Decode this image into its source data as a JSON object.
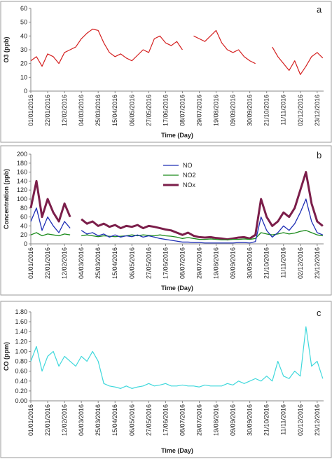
{
  "chart_data": [
    {
      "type": "line",
      "panel_label": "a",
      "xlabel": "Time (Day)",
      "ylabel": "O3 (ppb)",
      "x": [
        "01/01/2016",
        "08/01/2016",
        "15/01/2016",
        "22/01/2016",
        "29/01/2016",
        "05/02/2016",
        "12/02/2016",
        "19/02/2016",
        "26/02/2016",
        "04/03/2016",
        "11/03/2016",
        "18/03/2016",
        "25/03/2016",
        "01/04/2016",
        "08/04/2016",
        "15/04/2016",
        "22/04/2016",
        "29/04/2016",
        "06/05/2016",
        "13/05/2016",
        "20/05/2016",
        "27/05/2016",
        "03/06/2016",
        "10/06/2016",
        "17/06/2016",
        "24/06/2016",
        "01/07/2016",
        "08/07/2016",
        "15/07/2016",
        "22/07/2016",
        "29/07/2016",
        "05/08/2016",
        "12/08/2016",
        "19/08/2016",
        "26/08/2016",
        "02/09/2016",
        "09/09/2016",
        "16/09/2016",
        "23/09/2016",
        "30/09/2016",
        "07/10/2016",
        "14/10/2016",
        "21/10/2016",
        "28/10/2016",
        "04/11/2016",
        "11/11/2016",
        "18/11/2016",
        "25/11/2016",
        "02/12/2016",
        "09/12/2016",
        "16/12/2016",
        "23/12/2016",
        "30/12/2016"
      ],
      "xticks": [
        "01/01/2016",
        "22/01/2016",
        "12/02/2016",
        "04/03/2016",
        "25/03/2016",
        "15/04/2016",
        "06/05/2016",
        "27/05/2016",
        "17/06/2016",
        "08/07/2016",
        "29/07/2016",
        "19/08/2016",
        "09/09/2016",
        "30/09/2016",
        "21/10/2016",
        "11/11/2016",
        "02/12/2016",
        "23/12/2016"
      ],
      "ylim": [
        0,
        60
      ],
      "yticks": [
        0,
        10,
        20,
        30,
        40,
        50,
        60
      ],
      "series": [
        {
          "name": "O3",
          "color": "#d42020",
          "values": [
            22,
            25,
            18,
            27,
            25,
            20,
            28,
            30,
            32,
            38,
            42,
            45,
            44,
            35,
            28,
            25,
            27,
            24,
            22,
            26,
            30,
            28,
            38,
            40,
            35,
            33,
            36,
            30,
            null,
            40,
            38,
            36,
            40,
            44,
            35,
            30,
            28,
            30,
            25,
            22,
            20,
            null,
            null,
            32,
            25,
            20,
            15,
            22,
            12,
            18,
            25,
            28,
            24
          ]
        }
      ]
    },
    {
      "type": "line",
      "panel_label": "b",
      "xlabel": "Time (Day)",
      "ylabel": "Concentration (ppb)",
      "legend": "top-center",
      "x": [
        "01/01/2016",
        "08/01/2016",
        "15/01/2016",
        "22/01/2016",
        "29/01/2016",
        "05/02/2016",
        "12/02/2016",
        "19/02/2016",
        "26/02/2016",
        "04/03/2016",
        "11/03/2016",
        "18/03/2016",
        "25/03/2016",
        "01/04/2016",
        "08/04/2016",
        "15/04/2016",
        "22/04/2016",
        "29/04/2016",
        "06/05/2016",
        "13/05/2016",
        "20/05/2016",
        "27/05/2016",
        "03/06/2016",
        "10/06/2016",
        "17/06/2016",
        "24/06/2016",
        "01/07/2016",
        "08/07/2016",
        "15/07/2016",
        "22/07/2016",
        "29/07/2016",
        "05/08/2016",
        "12/08/2016",
        "19/08/2016",
        "26/08/2016",
        "02/09/2016",
        "09/09/2016",
        "16/09/2016",
        "23/09/2016",
        "30/09/2016",
        "07/10/2016",
        "14/10/2016",
        "21/10/2016",
        "28/10/2016",
        "04/11/2016",
        "11/11/2016",
        "18/11/2016",
        "25/11/2016",
        "02/12/2016",
        "09/12/2016",
        "16/12/2016",
        "23/12/2016",
        "30/12/2016"
      ],
      "xticks": [
        "01/01/2016",
        "22/01/2016",
        "12/02/2016",
        "04/03/2016",
        "25/03/2016",
        "15/04/2016",
        "06/05/2016",
        "27/05/2016",
        "17/06/2016",
        "08/07/2016",
        "29/07/2016",
        "19/08/2016",
        "09/09/2016",
        "30/09/2016",
        "21/10/2016",
        "11/11/2016",
        "02/12/2016",
        "23/12/2016"
      ],
      "ylim": [
        0,
        200
      ],
      "yticks": [
        0,
        20,
        40,
        60,
        80,
        100,
        120,
        140,
        160,
        180,
        200
      ],
      "series": [
        {
          "name": "NOx",
          "color": "#7b1e4a",
          "width": 3,
          "values": [
            80,
            140,
            60,
            100,
            70,
            50,
            90,
            60,
            null,
            55,
            45,
            50,
            40,
            45,
            38,
            42,
            35,
            40,
            38,
            42,
            35,
            40,
            38,
            35,
            32,
            30,
            25,
            20,
            25,
            18,
            15,
            14,
            15,
            13,
            12,
            10,
            12,
            14,
            15,
            12,
            20,
            100,
            60,
            40,
            50,
            70,
            60,
            80,
            120,
            160,
            90,
            50,
            40
          ]
        },
        {
          "name": "NO2",
          "color": "#1a8a1a",
          "width": 1.3,
          "values": [
            20,
            25,
            18,
            22,
            20,
            18,
            22,
            20,
            null,
            18,
            20,
            18,
            16,
            18,
            17,
            16,
            17,
            18,
            20,
            18,
            20,
            19,
            18,
            20,
            18,
            17,
            15,
            12,
            14,
            12,
            10,
            10,
            11,
            10,
            9,
            9,
            10,
            10,
            11,
            10,
            12,
            25,
            22,
            20,
            22,
            25,
            22,
            24,
            28,
            30,
            25,
            20,
            18
          ]
        },
        {
          "name": "NO",
          "color": "#1f2fb5",
          "width": 1.3,
          "values": [
            50,
            80,
            30,
            60,
            40,
            25,
            50,
            35,
            null,
            30,
            22,
            25,
            18,
            22,
            15,
            20,
            15,
            18,
            16,
            20,
            15,
            18,
            15,
            12,
            10,
            8,
            6,
            4,
            4,
            3,
            3,
            2,
            2,
            2,
            2,
            2,
            2,
            3,
            3,
            2,
            5,
            60,
            30,
            15,
            25,
            40,
            30,
            45,
            70,
            100,
            50,
            25,
            20
          ]
        }
      ]
    },
    {
      "type": "line",
      "panel_label": "c",
      "xlabel": "Time (Day)",
      "ylabel": "CO (ppm)",
      "x": [
        "01/01/2016",
        "08/01/2016",
        "15/01/2016",
        "22/01/2016",
        "29/01/2016",
        "05/02/2016",
        "12/02/2016",
        "19/02/2016",
        "26/02/2016",
        "04/03/2016",
        "11/03/2016",
        "18/03/2016",
        "25/03/2016",
        "01/04/2016",
        "08/04/2016",
        "15/04/2016",
        "22/04/2016",
        "29/04/2016",
        "06/05/2016",
        "13/05/2016",
        "20/05/2016",
        "27/05/2016",
        "03/06/2016",
        "10/06/2016",
        "17/06/2016",
        "24/06/2016",
        "01/07/2016",
        "08/07/2016",
        "15/07/2016",
        "22/07/2016",
        "29/07/2016",
        "05/08/2016",
        "12/08/2016",
        "19/08/2016",
        "26/08/2016",
        "02/09/2016",
        "09/09/2016",
        "16/09/2016",
        "23/09/2016",
        "30/09/2016",
        "07/10/2016",
        "14/10/2016",
        "21/10/2016",
        "28/10/2016",
        "04/11/2016",
        "11/11/2016",
        "18/11/2016",
        "25/11/2016",
        "02/12/2016",
        "09/12/2016",
        "16/12/2016",
        "23/12/2016",
        "30/12/2016"
      ],
      "xticks": [
        "01/01/2016",
        "22/01/2016",
        "12/02/2016",
        "04/03/2016",
        "25/03/2016",
        "15/04/2016",
        "06/05/2016",
        "27/05/2016",
        "17/06/2016",
        "08/07/2016",
        "29/07/2016",
        "19/08/2016",
        "09/09/2016",
        "30/09/2016",
        "21/10/2016",
        "11/11/2016",
        "02/12/2016",
        "23/12/2016"
      ],
      "ylim": [
        0,
        1.8
      ],
      "yticks": [
        {
          "value": 0,
          "label": "0.00"
        },
        {
          "value": 0.2,
          "label": "0.20"
        },
        {
          "value": 0.4,
          "label": "0.40"
        },
        {
          "value": 0.6,
          "label": "0.60"
        },
        {
          "value": 0.8,
          "label": "0.80"
        },
        {
          "value": 1,
          "label": "1.00"
        },
        {
          "value": 1.2,
          "label": "1.20"
        },
        {
          "value": 1.4,
          "label": "1.40"
        },
        {
          "value": 1.6,
          "label": "1.60"
        },
        {
          "value": 1.8,
          "label": "1.80"
        }
      ],
      "series": [
        {
          "name": "CO",
          "color": "#3fd8dc",
          "values": [
            0.8,
            1.1,
            0.6,
            0.9,
            1.0,
            0.7,
            0.9,
            0.8,
            0.7,
            0.9,
            0.8,
            1.0,
            0.8,
            0.35,
            0.3,
            0.28,
            0.25,
            0.3,
            0.25,
            0.28,
            0.3,
            0.35,
            0.3,
            0.32,
            0.35,
            0.3,
            0.3,
            0.32,
            0.3,
            0.3,
            0.28,
            0.32,
            0.3,
            0.3,
            0.3,
            0.35,
            0.32,
            0.4,
            0.35,
            0.4,
            0.45,
            0.4,
            0.5,
            0.4,
            0.8,
            0.5,
            0.45,
            0.6,
            0.5,
            1.5,
            0.7,
            0.8,
            0.45
          ]
        }
      ]
    }
  ]
}
